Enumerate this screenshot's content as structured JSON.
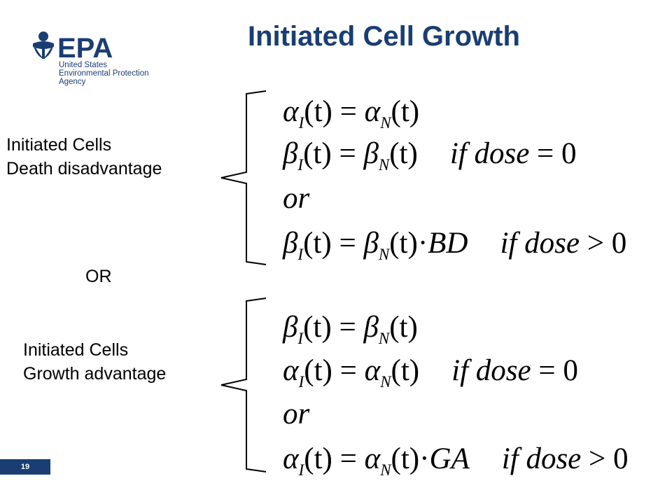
{
  "header": {
    "logo": {
      "mark": "EPA",
      "lines": [
        "United States",
        "Environmental Protection",
        "Agency"
      ],
      "color": "#1a3e73"
    },
    "title": "Initiated Cell Growth"
  },
  "section_top": {
    "label_line1": "Initiated Cells",
    "label_line2": "Death disadvantage"
  },
  "separator": "OR",
  "section_bottom": {
    "label_line1": "Initiated Cells",
    "label_line2": "Growth advantage"
  },
  "symbols": {
    "alpha": "α",
    "beta": "β",
    "sub_I": "I",
    "sub_N": "N",
    "t_arg": "(t)",
    "equals": " = ",
    "cdot": "·",
    "if": "if",
    "dose": "dose",
    "eq_zero": " = 0",
    "gt_zero": " > 0",
    "or": "or",
    "BD": "BD",
    "GA": "GA"
  },
  "footer": {
    "slide_number": "19"
  },
  "colors": {
    "accent": "#1a3e73",
    "text": "#000000",
    "background": "#ffffff"
  }
}
